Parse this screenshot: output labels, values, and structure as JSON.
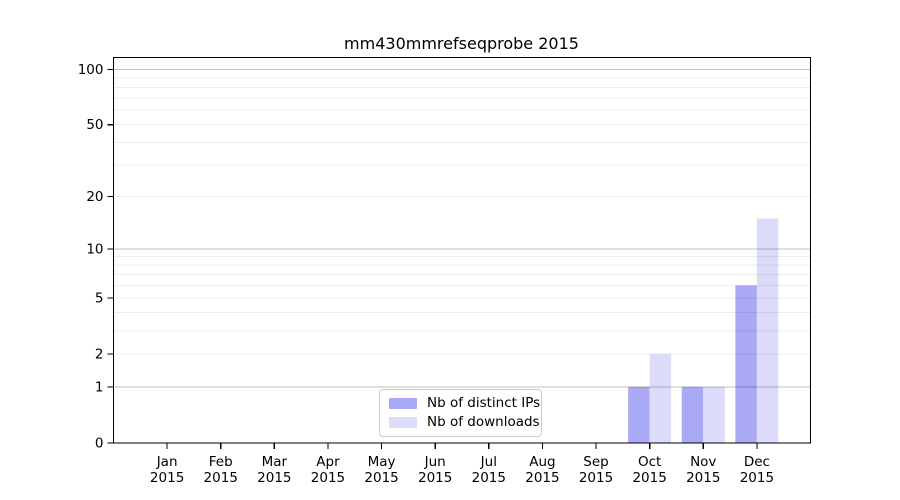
{
  "chart_data": {
    "type": "bar",
    "title": "mm430mmrefseqprobe 2015",
    "categories": [
      "Jan 2015",
      "Feb 2015",
      "Mar 2015",
      "Apr 2015",
      "May 2015",
      "Jun 2015",
      "Jul 2015",
      "Aug 2015",
      "Sep 2015",
      "Oct 2015",
      "Nov 2015",
      "Dec 2015"
    ],
    "series": [
      {
        "name": "Nb of distinct IPs",
        "color": "#a9a9f6",
        "values": [
          0,
          0,
          0,
          0,
          0,
          0,
          0,
          0,
          0,
          1,
          1,
          6
        ]
      },
      {
        "name": "Nb of downloads",
        "color": "#dcdcfa",
        "values": [
          0,
          0,
          0,
          0,
          0,
          0,
          0,
          0,
          0,
          2,
          1,
          15
        ]
      }
    ],
    "y_scale": "log1p",
    "ylim": [
      0,
      116
    ],
    "y_ticks": [
      0,
      1,
      2,
      5,
      10,
      20,
      50,
      100
    ],
    "y_major_gridlines": [
      1,
      10,
      100
    ],
    "y_minor_gridlines": [
      2,
      3,
      4,
      5,
      6,
      7,
      8,
      9,
      20,
      30,
      40,
      50,
      60,
      70,
      80,
      90
    ],
    "xlabel": "",
    "ylabel": "",
    "grid": true,
    "legend_position": "lower center"
  },
  "colors": {
    "background": "#ffffff",
    "axis": "#000000",
    "grid": "#000000",
    "major_grid_opacity": "0.24",
    "minor_grid_opacity": "0.075",
    "legend_border": "#cccccc",
    "text": "#000000"
  }
}
